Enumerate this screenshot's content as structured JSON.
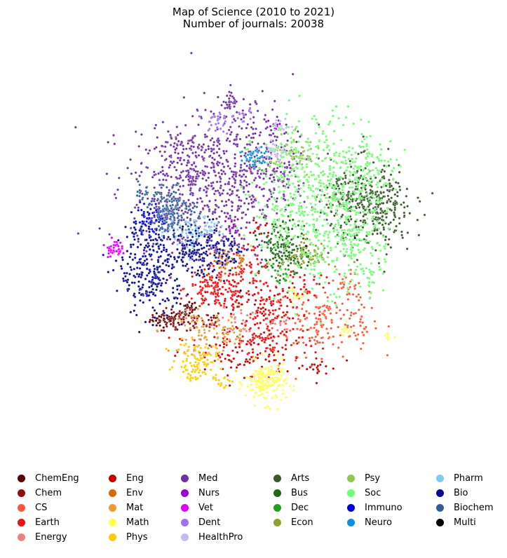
{
  "chart_data": {
    "type": "scatter",
    "title": "Map of Science (2010 to 2021)",
    "subtitle": "Number of journals: 20038",
    "xlabel": "",
    "ylabel": "",
    "axes_visible": false,
    "grid": false,
    "legend_placement": "bottom",
    "legend_columns": 6,
    "series": [
      {
        "name": "ChemEng",
        "color": "#5a0000",
        "clusters": [
          [
            -0.43,
            -0.32,
            0.04,
            0.02,
            45
          ],
          [
            -0.32,
            -0.27,
            0.02,
            0.02,
            25
          ]
        ]
      },
      {
        "name": "Chem",
        "color": "#8b1010",
        "clusters": [
          [
            -0.36,
            -0.33,
            0.06,
            0.03,
            55
          ],
          [
            -0.22,
            -0.32,
            0.03,
            0.02,
            20
          ]
        ]
      },
      {
        "name": "CS",
        "color": "#ff5733",
        "clusters": [
          [
            0.33,
            -0.33,
            0.12,
            0.08,
            150
          ],
          [
            0.46,
            -0.2,
            0.06,
            0.05,
            40
          ],
          [
            0.52,
            -0.38,
            0.03,
            0.03,
            15
          ]
        ]
      },
      {
        "name": "Earth",
        "color": "#f01010",
        "clusters": [
          [
            -0.18,
            -0.17,
            0.08,
            0.05,
            150
          ],
          [
            -0.02,
            -0.1,
            0.06,
            0.08,
            70
          ],
          [
            0.02,
            -0.42,
            0.15,
            0.06,
            120
          ],
          [
            0.25,
            -0.15,
            0.05,
            0.04,
            40
          ],
          [
            0.07,
            -0.28,
            0.06,
            0.05,
            50
          ]
        ]
      },
      {
        "name": "Energy",
        "color": "#f08080",
        "clusters": [
          [
            -0.08,
            -0.32,
            0.04,
            0.03,
            20
          ],
          [
            0.12,
            -0.34,
            0.03,
            0.02,
            12
          ]
        ]
      },
      {
        "name": "Eng",
        "color": "#c80000",
        "clusters": [
          [
            -0.05,
            -0.5,
            0.15,
            0.06,
            90
          ],
          [
            0.03,
            0.12,
            0.03,
            0.03,
            15
          ],
          [
            -0.01,
            -0.25,
            0.12,
            0.05,
            60
          ],
          [
            0.3,
            -0.55,
            0.06,
            0.03,
            20
          ]
        ]
      },
      {
        "name": "Env",
        "color": "#d46a00",
        "clusters": [
          [
            -0.15,
            -0.04,
            0.025,
            0.03,
            45
          ],
          [
            -0.06,
            -0.04,
            0.02,
            0.02,
            15
          ]
        ]
      },
      {
        "name": "Mat",
        "color": "#ee9a30",
        "clusters": [
          [
            -0.25,
            -0.38,
            0.06,
            0.05,
            55
          ],
          [
            -0.1,
            -0.38,
            0.04,
            0.03,
            25
          ]
        ]
      },
      {
        "name": "Math",
        "color": "#ffff50",
        "clusters": [
          [
            0.06,
            -0.62,
            0.05,
            0.05,
            180
          ],
          [
            0.2,
            -0.2,
            0.02,
            0.02,
            15
          ],
          [
            0.45,
            -0.38,
            0.02,
            0.02,
            12
          ],
          [
            0.66,
            -0.4,
            0.015,
            0.015,
            8
          ]
        ]
      },
      {
        "name": "Phys",
        "color": "#ffcc00",
        "clusters": [
          [
            -0.28,
            -0.51,
            0.05,
            0.04,
            90
          ],
          [
            -0.15,
            -0.6,
            0.03,
            0.03,
            20
          ],
          [
            -0.31,
            -0.6,
            0.02,
            0.015,
            10
          ]
        ]
      },
      {
        "name": "Med",
        "color": "#7030a0",
        "clusters": [
          [
            -0.2,
            0.3,
            0.2,
            0.14,
            520
          ],
          [
            -0.03,
            0.52,
            0.14,
            0.12,
            200
          ],
          [
            -0.38,
            0.45,
            0.1,
            0.08,
            120
          ],
          [
            -0.2,
            0.05,
            0.1,
            0.05,
            70
          ],
          [
            0.12,
            0.4,
            0.06,
            0.05,
            60
          ],
          [
            -0.44,
            0.2,
            0.04,
            0.03,
            30
          ],
          [
            -0.11,
            0.72,
            0.02,
            0.02,
            25
          ]
        ]
      },
      {
        "name": "Nurs",
        "color": "#9900cc",
        "clusters": [
          [
            -0.1,
            0.12,
            0.02,
            0.02,
            15
          ],
          [
            0.1,
            0.6,
            0.02,
            0.02,
            10
          ]
        ]
      },
      {
        "name": "Vet",
        "color": "#e000ff",
        "clusters": [
          [
            -0.69,
            0.02,
            0.02,
            0.02,
            45
          ]
        ]
      },
      {
        "name": "Dent",
        "color": "#a070f0",
        "clusters": [
          [
            -0.18,
            0.62,
            0.03,
            0.03,
            30
          ],
          [
            -0.05,
            0.66,
            0.02,
            0.02,
            12
          ]
        ]
      },
      {
        "name": "HealthPro",
        "color": "#c8b8f0",
        "clusters": [
          [
            0.1,
            0.48,
            0.03,
            0.03,
            30
          ],
          [
            0.14,
            0.6,
            0.02,
            0.02,
            15
          ]
        ]
      },
      {
        "name": "Arts",
        "color": "#3a5a2a",
        "clusters": [
          [
            0.58,
            0.22,
            0.1,
            0.1,
            380
          ],
          [
            0.42,
            0.27,
            0.04,
            0.04,
            60
          ]
        ]
      },
      {
        "name": "Bus",
        "color": "#1a6a10",
        "clusters": [
          [
            0.13,
            0.03,
            0.05,
            0.07,
            130
          ],
          [
            0.22,
            -0.03,
            0.04,
            0.04,
            40
          ]
        ]
      },
      {
        "name": "Dec",
        "color": "#20a020",
        "clusters": [
          [
            0.12,
            -0.1,
            0.03,
            0.03,
            20
          ]
        ]
      },
      {
        "name": "Econ",
        "color": "#90a030",
        "clusters": [
          [
            0.28,
            -0.01,
            0.05,
            0.04,
            70
          ]
        ]
      },
      {
        "name": "Psy",
        "color": "#90c850",
        "clusters": [
          [
            0.2,
            0.46,
            0.06,
            0.05,
            60
          ]
        ]
      },
      {
        "name": "Soc",
        "color": "#70ff70",
        "clusters": [
          [
            0.3,
            0.25,
            0.15,
            0.2,
            550
          ],
          [
            0.5,
            0.38,
            0.1,
            0.08,
            150
          ],
          [
            0.48,
            0.05,
            0.08,
            0.08,
            120
          ],
          [
            0.58,
            -0.12,
            0.03,
            0.03,
            25
          ]
        ]
      },
      {
        "name": "Immuno",
        "color": "#0000e0",
        "clusters": [
          [
            -0.53,
            0.16,
            0.03,
            0.04,
            40
          ],
          [
            -0.46,
            0.17,
            0.02,
            0.02,
            20
          ]
        ]
      },
      {
        "name": "Neuro",
        "color": "#0a90e0",
        "clusters": [
          [
            0.01,
            0.45,
            0.04,
            0.03,
            45
          ]
        ]
      },
      {
        "name": "Pharm",
        "color": "#80ccf0",
        "clusters": [
          [
            -0.32,
            0.1,
            0.06,
            0.04,
            60
          ],
          [
            -0.22,
            0.12,
            0.04,
            0.03,
            25
          ]
        ]
      },
      {
        "name": "Bio",
        "color": "#0a0a90",
        "clusters": [
          [
            -0.5,
            -0.1,
            0.08,
            0.1,
            260
          ],
          [
            -0.29,
            -0.01,
            0.06,
            0.05,
            120
          ],
          [
            -0.14,
            0.0,
            0.05,
            0.06,
            60
          ],
          [
            -0.54,
            0.08,
            0.05,
            0.04,
            40
          ]
        ]
      },
      {
        "name": "Biochem",
        "color": "#30609a",
        "clusters": [
          [
            -0.4,
            0.2,
            0.06,
            0.05,
            160
          ],
          [
            -0.52,
            0.3,
            0.03,
            0.03,
            20
          ]
        ]
      },
      {
        "name": "Multi",
        "color": "#000000",
        "clusters": [
          [
            0.0,
            -0.1,
            0.4,
            0.3,
            6
          ]
        ]
      }
    ]
  }
}
